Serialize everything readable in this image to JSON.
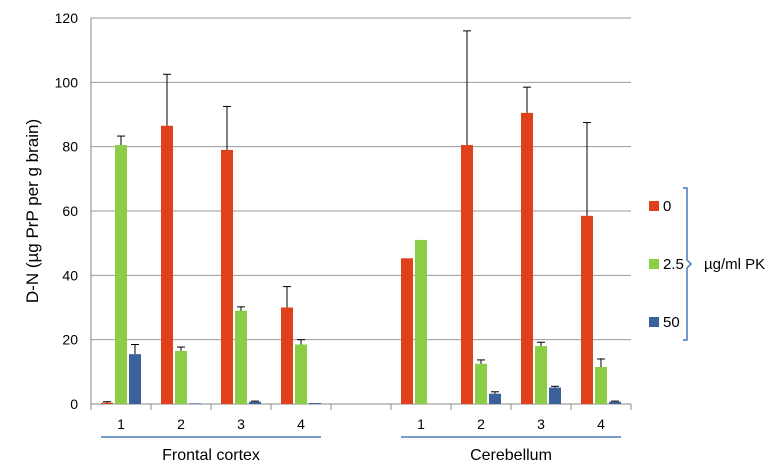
{
  "chart_data": {
    "type": "bar",
    "title": "",
    "ylabel": "D-N (µg PrP per g brain)",
    "xlabel": "",
    "ylim": [
      0,
      120
    ],
    "yticks": [
      0,
      20,
      40,
      60,
      80,
      100,
      120
    ],
    "grid": true,
    "legend_placement": "right",
    "legend_unit": "µg/ml PK",
    "categories": [
      "1",
      "2",
      "3",
      "4",
      "",
      "1",
      "2",
      "3",
      "4"
    ],
    "groups": [
      {
        "label": "Frontal cortex",
        "category_indices": [
          0,
          1,
          2,
          3
        ]
      },
      {
        "label": "Cerebellum",
        "category_indices": [
          5,
          6,
          7,
          8
        ]
      }
    ],
    "series": [
      {
        "name": "0",
        "color": "#e0401a",
        "values": [
          0.4,
          86.5,
          79,
          30,
          null,
          45.3,
          80.5,
          90.5,
          58.5
        ],
        "errors": [
          0.3,
          16,
          13.5,
          6.5,
          null,
          0,
          35.5,
          8,
          29
        ]
      },
      {
        "name": "2.5",
        "color": "#8ccd46",
        "values": [
          80.5,
          16.5,
          29,
          18.5,
          null,
          51,
          12.5,
          18,
          11.5
        ],
        "errors": [
          2.8,
          1.2,
          1.2,
          1.5,
          null,
          0,
          1.2,
          1.2,
          2.5
        ]
      },
      {
        "name": "50",
        "color": "#3a6199",
        "values": [
          15.5,
          0.2,
          0.7,
          0.3,
          null,
          0,
          3.2,
          5.1,
          0.7
        ],
        "errors": [
          3,
          0,
          0.2,
          0,
          null,
          0,
          0.6,
          0.4,
          0.2
        ]
      }
    ]
  }
}
